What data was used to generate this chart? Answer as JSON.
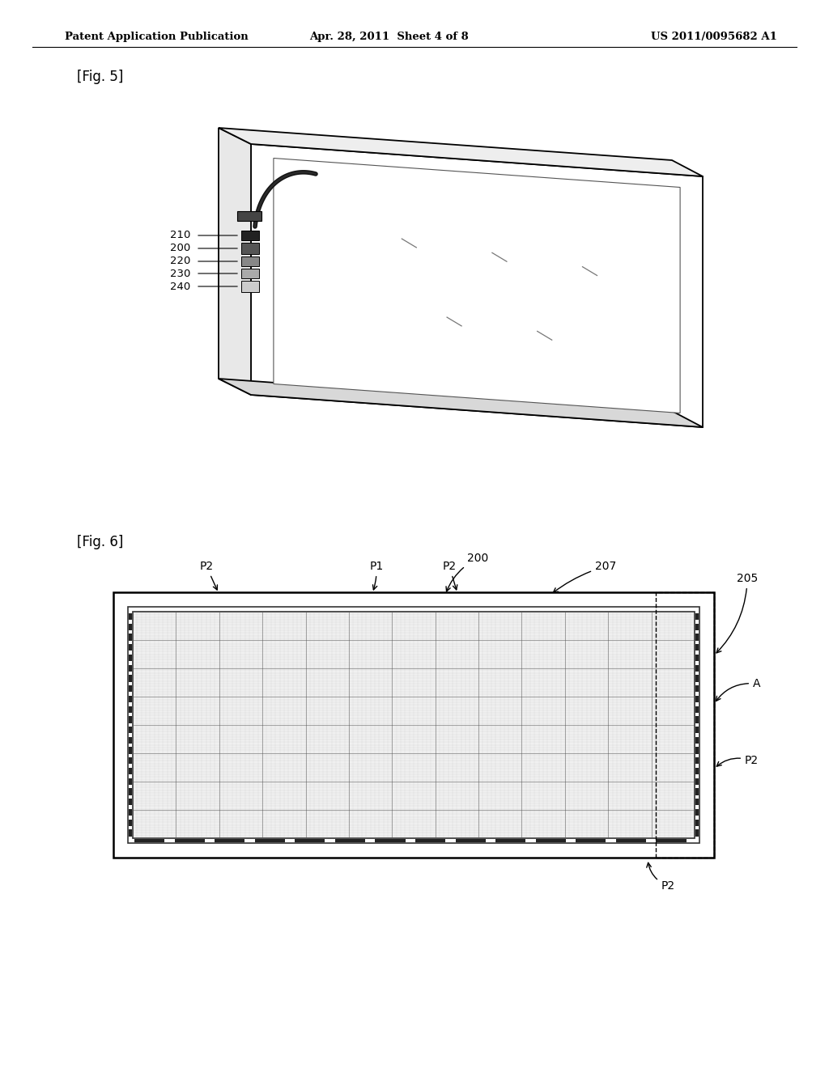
{
  "bg_color": "#ffffff",
  "header_left": "Patent Application Publication",
  "header_center": "Apr. 28, 2011  Sheet 4 of 8",
  "header_right": "US 2011/0095682 A1",
  "fig5_label": "[Fig. 5]",
  "fig6_label": "[Fig. 6]",
  "text_color": "#000000",
  "line_color": "#000000"
}
